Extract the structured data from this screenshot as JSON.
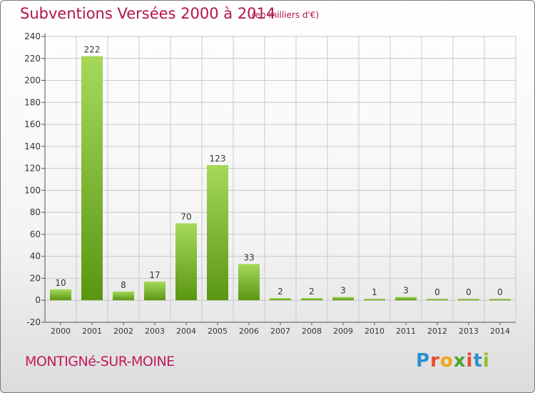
{
  "header": {
    "title": "Subventions Versées 2000 à 2014",
    "subtitle": "(en milliers d'€)"
  },
  "footer": {
    "commune": "MONTIGNé-SUR-MOINE",
    "logo": "Proxiti"
  },
  "colors": {
    "title": "#b2134f",
    "bar_light": "#9fd450",
    "bar_dark": "#5e9a12",
    "grid": "#c8c8c8"
  },
  "chart_data": {
    "type": "bar",
    "categories": [
      "2000",
      "2001",
      "2002",
      "2003",
      "2004",
      "2005",
      "2006",
      "2007",
      "2008",
      "2009",
      "2010",
      "2011",
      "2012",
      "2013",
      "2014"
    ],
    "values": [
      10,
      222,
      8,
      17,
      70,
      123,
      33,
      2,
      2,
      3,
      1,
      3,
      0,
      0,
      0
    ],
    "ylim": [
      -20,
      240
    ],
    "yticks": [
      -20,
      0,
      20,
      40,
      60,
      80,
      100,
      120,
      140,
      160,
      180,
      200,
      220,
      240
    ],
    "grid": true,
    "xlabel": "",
    "ylabel": ""
  }
}
